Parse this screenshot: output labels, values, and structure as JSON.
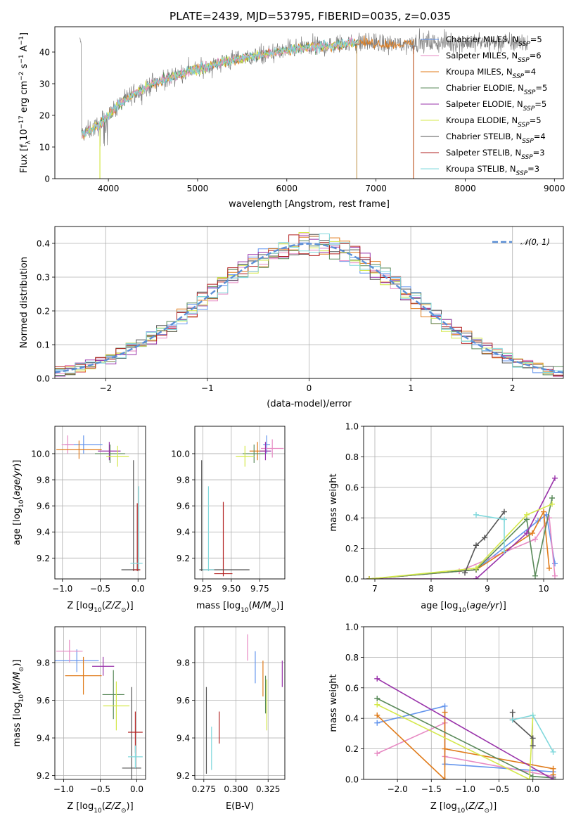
{
  "title": "PLATE=2439, MJD=53795, FIBERID=0035, z=0.035",
  "colors": {
    "Chabrier MILES": "#6495ed",
    "Salpeter MILES": "#e78ac3",
    "Kroupa MILES": "#e07b1a",
    "Chabrier ELODIE": "#5a8a5a",
    "Salpeter ELODIE": "#9933aa",
    "Kroupa ELODIE": "#d4e84a",
    "Chabrier STELIB": "#555555",
    "Salpeter STELIB": "#b22222",
    "Kroupa STELIB": "#80d8dc",
    "normal": "#5b8fd6",
    "grid": "#b0b0b0"
  },
  "chart_data": [
    {
      "id": "spectrum",
      "type": "line",
      "xlabel": "wavelength [Angstrom, rest frame]",
      "ylabel": "Flux [f_λ10^-17 erg cm^-2 s^-1 A^-1]",
      "xlim": [
        3400,
        9100
      ],
      "ylim": [
        0,
        48
      ],
      "xticks": [
        4000,
        5000,
        6000,
        7000,
        8000,
        9000
      ],
      "yticks": [
        0,
        10,
        20,
        30,
        40
      ],
      "grid": false,
      "legend_position": "right",
      "x": [
        3700,
        3900,
        4100,
        4300,
        4500,
        4700,
        4900,
        5100,
        5300,
        5500,
        5700,
        5900,
        6100,
        6300,
        6500,
        6700,
        6900,
        7100,
        7300,
        7500
      ],
      "y": [
        14,
        17,
        23,
        27,
        30,
        32,
        34,
        35,
        37,
        38,
        39,
        40,
        41,
        41.5,
        42,
        43,
        43,
        42.5,
        42.5,
        43
      ],
      "legend": [
        {
          "name": "Chabrier MILES, N",
          "sub": "SSP",
          "suffix": "=5"
        },
        {
          "name": "Salpeter MILES, N",
          "sub": "SSP",
          "suffix": "=6"
        },
        {
          "name": "Kroupa MILES, N",
          "sub": "SSP",
          "suffix": "=4"
        },
        {
          "name": "Chabrier ELODIE, N",
          "sub": "SSP",
          "suffix": "=5"
        },
        {
          "name": "Salpeter ELODIE, N",
          "sub": "SSP",
          "suffix": "=5"
        },
        {
          "name": "Kroupa ELODIE, N",
          "sub": "SSP",
          "suffix": "=5"
        },
        {
          "name": "Chabrier STELIB, N",
          "sub": "SSP",
          "suffix": "=4"
        },
        {
          "name": "Salpeter STELIB, N",
          "sub": "SSP",
          "suffix": "=3"
        },
        {
          "name": "Kroupa STELIB, N",
          "sub": "SSP",
          "suffix": "=3"
        }
      ]
    },
    {
      "id": "residuals",
      "type": "bar",
      "xlabel": "(data-model)/error",
      "ylabel": "Normed distribution",
      "xlim": [
        -2.5,
        2.5
      ],
      "ylim": [
        0,
        0.45
      ],
      "xticks": [
        -2,
        -1,
        0,
        1,
        2
      ],
      "yticks": [
        0.0,
        0.1,
        0.2,
        0.3,
        0.4
      ],
      "grid": true,
      "legend_position": "top-right",
      "legend": [
        {
          "name": "𝒩(0, 1)"
        }
      ],
      "bin_width": 0.1
    },
    {
      "id": "age-vs-Z",
      "type": "scatter",
      "xlabel": "Z [log10(Z/Z☉)]",
      "ylabel": "age  [log10(age/yr)]",
      "xlim": [
        -1.1,
        0.1
      ],
      "ylim": [
        9.04,
        10.21
      ],
      "xticks": [
        -1.0,
        -0.5,
        0.0
      ],
      "yticks": [
        9.2,
        9.4,
        9.6,
        9.8,
        10.0
      ],
      "grid": true,
      "points": [
        {
          "model": "Chabrier MILES",
          "x": -0.72,
          "y": 10.07,
          "xerr": 0.25,
          "yerr": 0.07
        },
        {
          "model": "Salpeter MILES",
          "x": -0.93,
          "y": 10.07,
          "xerr": 0.08,
          "yerr": 0.07
        },
        {
          "model": "Kroupa MILES",
          "x": -0.78,
          "y": 10.03,
          "xerr": 0.3,
          "yerr": 0.07
        },
        {
          "model": "Chabrier ELODIE",
          "x": -0.37,
          "y": 10.0,
          "xerr": 0.2,
          "yerr": 0.07
        },
        {
          "model": "Salpeter ELODIE",
          "x": -0.38,
          "y": 10.02,
          "xerr": 0.15,
          "yerr": 0.07
        },
        {
          "model": "Kroupa ELODIE",
          "x": -0.27,
          "y": 9.98,
          "xerr": 0.15,
          "yerr": 0.08
        },
        {
          "model": "Chabrier STELIB",
          "x": -0.1,
          "y": 9.11,
          "xerr": 0.12,
          "yerr": 0.0
        },
        {
          "model": "Salpeter STELIB",
          "x": -0.02,
          "y": 9.11,
          "xerr": 0.05,
          "yerr": 0.0
        },
        {
          "model": "Kroupa STELIB",
          "x": -0.02,
          "y": 9.16,
          "xerr": 0.08,
          "yerr": 0.0
        }
      ],
      "vlines": [
        {
          "model": "Chabrier STELIB",
          "x": -0.06,
          "y1": 9.1,
          "y2": 9.95
        },
        {
          "model": "Kroupa STELIB",
          "x": 0.01,
          "y1": 9.1,
          "y2": 9.75
        },
        {
          "model": "Salpeter STELIB",
          "x": -0.01,
          "y1": 9.1,
          "y2": 9.62
        }
      ]
    },
    {
      "id": "age-vs-mass",
      "type": "scatter",
      "xlabel": "mass [log10(M/M☉)]",
      "ylabel": "",
      "xlim": [
        9.18,
        9.97
      ],
      "ylim": [
        9.04,
        10.21
      ],
      "xticks": [
        9.25,
        9.5,
        9.75
      ],
      "yticks": [
        9.2,
        9.4,
        9.6,
        9.8,
        10.0
      ],
      "grid": true,
      "points": [
        {
          "model": "Chabrier MILES",
          "x": 9.81,
          "y": 10.07,
          "xerr": 0.03,
          "yerr": 0.07
        },
        {
          "model": "Salpeter MILES",
          "x": 9.86,
          "y": 10.04,
          "xerr": 0.1,
          "yerr": 0.07
        },
        {
          "model": "Kroupa MILES",
          "x": 9.73,
          "y": 10.02,
          "xerr": 0.07,
          "yerr": 0.07
        },
        {
          "model": "Chabrier ELODIE",
          "x": 9.7,
          "y": 10.0,
          "xerr": 0.1,
          "yerr": 0.07
        },
        {
          "model": "Salpeter ELODIE",
          "x": 9.8,
          "y": 10.02,
          "xerr": 0.05,
          "yerr": 0.07
        },
        {
          "model": "Kroupa ELODIE",
          "x": 9.62,
          "y": 9.98,
          "xerr": 0.08,
          "yerr": 0.08
        },
        {
          "model": "Chabrier STELIB",
          "x": 9.44,
          "y": 9.11,
          "xerr": 0.22,
          "yerr": 0.0
        },
        {
          "model": "Salpeter STELIB",
          "x": 9.43,
          "y": 9.08,
          "xerr": 0.08,
          "yerr": 0.0
        },
        {
          "model": "Kroupa STELIB",
          "x": 9.3,
          "y": 9.11,
          "xerr": 0.05,
          "yerr": 0.0
        }
      ],
      "vlines": [
        {
          "model": "Chabrier STELIB",
          "x": 9.24,
          "y1": 9.1,
          "y2": 9.95
        },
        {
          "model": "Kroupa STELIB",
          "x": 9.3,
          "y1": 9.1,
          "y2": 9.75
        },
        {
          "model": "Salpeter STELIB",
          "x": 9.43,
          "y1": 9.06,
          "y2": 9.63
        }
      ]
    },
    {
      "id": "mass-weight-vs-age",
      "type": "line",
      "xlabel": "age  [log10(age/yr)]",
      "ylabel": "mass weight",
      "xlim": [
        6.8,
        10.35
      ],
      "ylim": [
        0,
        1
      ],
      "xticks": [
        7,
        8,
        9,
        10
      ],
      "yticks": [
        0.0,
        0.2,
        0.4,
        0.6,
        0.8,
        1.0
      ],
      "grid": true,
      "series": [
        {
          "model": "Chabrier MILES",
          "x": [
            6.9,
            8.8,
            9.9,
            10.05,
            10.2
          ],
          "y": [
            0.0,
            0.06,
            0.38,
            0.42,
            0.1
          ]
        },
        {
          "model": "Salpeter MILES",
          "x": [
            6.9,
            8.5,
            9.85,
            10.1,
            10.2
          ],
          "y": [
            0.0,
            0.05,
            0.26,
            0.4,
            0.02
          ]
        },
        {
          "model": "Kroupa MILES",
          "x": [
            6.9,
            8.8,
            9.8,
            10.0,
            10.1
          ],
          "y": [
            0.0,
            0.06,
            0.3,
            0.44,
            0.07
          ]
        },
        {
          "model": "Chabrier ELODIE",
          "x": [
            6.9,
            8.8,
            9.7,
            9.85,
            10.15
          ],
          "y": [
            0.0,
            0.06,
            0.39,
            0.02,
            0.53
          ]
        },
        {
          "model": "Salpeter ELODIE",
          "x": [
            6.9,
            8.8,
            9.7,
            10.2
          ],
          "y": [
            0.0,
            0.0,
            0.3,
            0.66
          ]
        },
        {
          "model": "Kroupa ELODIE",
          "x": [
            6.9,
            8.8,
            9.7,
            10.15
          ],
          "y": [
            0.0,
            0.07,
            0.42,
            0.49
          ]
        },
        {
          "model": "Chabrier STELIB",
          "x": [
            8.6,
            8.8,
            8.95,
            9.3
          ],
          "y": [
            0.04,
            0.22,
            0.27,
            0.44
          ]
        },
        {
          "model": "Kroupa STELIB",
          "x": [
            8.8,
            9.3,
            9.3
          ],
          "y": [
            0.42,
            0.39,
            0.18
          ]
        }
      ]
    },
    {
      "id": "mass-vs-Z",
      "type": "scatter",
      "xlabel": "Z [log10(Z/Z☉)]",
      "ylabel": "mass [log10(M/M☉)]",
      "xlim": [
        -1.12,
        0.12
      ],
      "ylim": [
        9.18,
        9.99
      ],
      "xticks": [
        -1.0,
        -0.5,
        0.0
      ],
      "yticks": [
        9.2,
        9.4,
        9.6,
        9.8
      ],
      "grid": true,
      "points": [
        {
          "model": "Chabrier MILES",
          "x": -0.82,
          "y": 9.81,
          "xerr": 0.3,
          "yerr": 0.06
        },
        {
          "model": "Salpeter MILES",
          "x": -0.92,
          "y": 9.86,
          "xerr": 0.18,
          "yerr": 0.06
        },
        {
          "model": "Kroupa MILES",
          "x": -0.73,
          "y": 9.73,
          "xerr": 0.25,
          "yerr": 0.1
        },
        {
          "model": "Chabrier ELODIE",
          "x": -0.32,
          "y": 9.63,
          "xerr": 0.15,
          "yerr": 0.13
        },
        {
          "model": "Salpeter ELODIE",
          "x": -0.46,
          "y": 9.78,
          "xerr": 0.15,
          "yerr": 0.05
        },
        {
          "model": "Kroupa ELODIE",
          "x": -0.28,
          "y": 9.57,
          "xerr": 0.18,
          "yerr": 0.13
        },
        {
          "model": "Chabrier STELIB",
          "x": -0.07,
          "y": 9.24,
          "xerr": 0.13,
          "yerr": 0.43
        },
        {
          "model": "Salpeter STELIB",
          "x": -0.02,
          "y": 9.43,
          "xerr": 0.1,
          "yerr": 0.11
        },
        {
          "model": "Kroupa STELIB",
          "x": -0.02,
          "y": 9.3,
          "xerr": 0.1,
          "yerr": 0.06
        }
      ]
    },
    {
      "id": "mass-vs-EBV",
      "type": "scatter",
      "xlabel": "E(B-V)",
      "ylabel": "",
      "xlim": [
        0.268,
        0.338
      ],
      "ylim": [
        9.18,
        9.99
      ],
      "xticks": [
        0.275,
        0.3,
        0.325
      ],
      "xticklabels": [
        "0.275",
        "0.300",
        "0.325"
      ],
      "yticks": [
        9.2,
        9.4,
        9.6,
        9.8
      ],
      "grid": true,
      "vlines": [
        {
          "model": "Salpeter MILES",
          "x": 0.309,
          "y1": 9.81,
          "y2": 9.95
        },
        {
          "model": "Chabrier MILES",
          "x": 0.315,
          "y1": 9.69,
          "y2": 9.86
        },
        {
          "model": "Kroupa MILES",
          "x": 0.321,
          "y1": 9.62,
          "y2": 9.81
        },
        {
          "model": "Chabrier ELODIE",
          "x": 0.323,
          "y1": 9.53,
          "y2": 9.73
        },
        {
          "model": "Kroupa ELODIE",
          "x": 0.324,
          "y1": 9.44,
          "y2": 9.71
        },
        {
          "model": "Salpeter ELODIE",
          "x": 0.336,
          "y1": 9.67,
          "y2": 9.81
        },
        {
          "model": "Chabrier STELIB",
          "x": 0.277,
          "y1": 9.21,
          "y2": 9.67
        },
        {
          "model": "Kroupa STELIB",
          "x": 0.281,
          "y1": 9.23,
          "y2": 9.46
        },
        {
          "model": "Salpeter STELIB",
          "x": 0.287,
          "y1": 9.37,
          "y2": 9.54
        }
      ]
    },
    {
      "id": "mass-weight-vs-Z",
      "type": "line",
      "xlabel": "Z [log10(Z/Z☉)]",
      "ylabel": "mass weight",
      "xlim": [
        -2.5,
        0.45
      ],
      "ylim": [
        0,
        1
      ],
      "xticks": [
        -2.0,
        -1.5,
        -1.0,
        -0.5,
        0.0
      ],
      "yticks": [
        0.0,
        0.2,
        0.4,
        0.6,
        0.8,
        1.0
      ],
      "grid": true,
      "series": [
        {
          "model": "Chabrier MILES",
          "x": [
            -2.3,
            -1.3,
            -1.3,
            0.3,
            0.3
          ],
          "y": [
            0.37,
            0.48,
            0.1,
            0.05,
            0.02
          ]
        },
        {
          "model": "Salpeter MILES",
          "x": [
            -2.3,
            -1.3,
            -1.3,
            0.3
          ],
          "y": [
            0.17,
            0.37,
            0.15,
            0.02
          ]
        },
        {
          "model": "Kroupa MILES",
          "x": [
            -2.3,
            -1.3,
            -1.3,
            -1.3,
            0.3,
            0.3
          ],
          "y": [
            0.42,
            0.0,
            0.44,
            0.2,
            0.07,
            0.03
          ]
        },
        {
          "model": "Chabrier ELODIE",
          "x": [
            -2.3,
            0.0,
            0.3
          ],
          "y": [
            0.53,
            0.02,
            0.01
          ]
        },
        {
          "model": "Salpeter ELODIE",
          "x": [
            -2.3,
            0.3
          ],
          "y": [
            0.66,
            0.0
          ]
        },
        {
          "model": "Kroupa ELODIE",
          "x": [
            -2.3,
            -0.05,
            0.0
          ],
          "y": [
            0.49,
            0.0,
            0.42
          ]
        },
        {
          "model": "Chabrier STELIB",
          "x": [
            -0.3,
            -0.3,
            0.0,
            0.0
          ],
          "y": [
            0.44,
            0.39,
            0.27,
            0.22
          ]
        },
        {
          "model": "Kroupa STELIB",
          "x": [
            -0.3,
            0.0,
            0.3
          ],
          "y": [
            0.39,
            0.42,
            0.18
          ]
        }
      ]
    }
  ]
}
